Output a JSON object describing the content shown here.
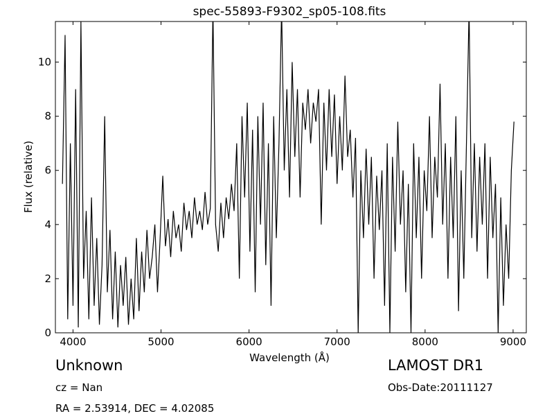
{
  "chart_data": {
    "type": "line",
    "title": "spec-55893-F9302_sp05-108.fits",
    "x_label": "Wavelength (Å)",
    "y_label": "Flux (relative)",
    "annotations": [
      "Unknown",
      "cz = Nan",
      "RA = 2.53914, DEC = 4.02085",
      "LAMOST DR1",
      "Obs-Date:20111127"
    ],
    "color": "#000000",
    "x": [
      3880,
      3910,
      3940,
      3970,
      4000,
      4030,
      4060,
      4090,
      4120,
      4150,
      4180,
      4210,
      4240,
      4270,
      4300,
      4330,
      4360,
      4390,
      4420,
      4450,
      4480,
      4510,
      4540,
      4570,
      4600,
      4630,
      4660,
      4690,
      4720,
      4750,
      4780,
      4810,
      4840,
      4870,
      4900,
      4930,
      4960,
      4990,
      5020,
      5050,
      5080,
      5110,
      5140,
      5170,
      5200,
      5230,
      5260,
      5290,
      5320,
      5350,
      5380,
      5410,
      5440,
      5470,
      5500,
      5530,
      5560,
      5590,
      5620,
      5650,
      5680,
      5710,
      5740,
      5770,
      5800,
      5830,
      5860,
      5890,
      5920,
      5950,
      5980,
      6010,
      6040,
      6070,
      6100,
      6130,
      6160,
      6190,
      6220,
      6250,
      6280,
      6310,
      6340,
      6370,
      6400,
      6430,
      6460,
      6490,
      6520,
      6550,
      6580,
      6610,
      6640,
      6670,
      6700,
      6730,
      6760,
      6790,
      6820,
      6850,
      6880,
      6910,
      6940,
      6970,
      7000,
      7030,
      7060,
      7090,
      7120,
      7150,
      7180,
      7210,
      7240,
      7270,
      7300,
      7330,
      7360,
      7390,
      7420,
      7450,
      7480,
      7510,
      7540,
      7570,
      7600,
      7630,
      7660,
      7690,
      7720,
      7750,
      7780,
      7810,
      7840,
      7870,
      7900,
      7930,
      7960,
      7990,
      8020,
      8050,
      8080,
      8110,
      8140,
      8170,
      8200,
      8230,
      8260,
      8290,
      8320,
      8350,
      8380,
      8410,
      8440,
      8470,
      8500,
      8530,
      8560,
      8590,
      8620,
      8650,
      8680,
      8710,
      8740,
      8770,
      8800,
      8830,
      8860,
      8890,
      8920,
      8950,
      8980,
      9010
    ],
    "values": [
      5.5,
      11,
      0.5,
      7,
      1,
      9,
      0.2,
      11.5,
      2,
      4.5,
      0.5,
      5,
      1,
      3.5,
      0.3,
      2.5,
      8,
      1.5,
      3.8,
      0.5,
      3,
      0.2,
      2.5,
      1,
      2.8,
      0.3,
      2,
      0.5,
      3.5,
      0.8,
      3,
      1.5,
      3.8,
      2,
      2.8,
      4,
      1.5,
      3.5,
      5.8,
      3.2,
      4.2,
      2.8,
      4.5,
      3.5,
      4,
      3,
      4.8,
      3.8,
      4.5,
      3.5,
      5,
      4,
      4.5,
      3.8,
      5.2,
      4,
      4.6,
      12,
      4,
      3,
      4.8,
      3.5,
      5,
      4.2,
      5.5,
      4.5,
      7,
      2,
      8,
      5,
      8.5,
      3,
      7.5,
      1.5,
      8,
      4,
      8.5,
      2.5,
      7,
      1,
      8,
      3.5,
      7,
      12,
      6,
      9,
      5,
      10,
      6.5,
      9,
      5,
      8.5,
      7.5,
      9,
      7,
      8.5,
      7.8,
      9,
      4,
      8.5,
      6,
      9,
      6.5,
      8.8,
      5.5,
      8,
      6,
      9.5,
      6.5,
      7.5,
      5,
      7.2,
      0,
      6,
      3.5,
      6.8,
      4,
      6.5,
      2,
      5.8,
      3.8,
      6,
      1,
      7,
      0,
      6.5,
      3,
      7.8,
      4,
      6,
      1.5,
      5.5,
      0,
      7,
      3.5,
      6.5,
      2,
      6,
      4.5,
      8,
      3.5,
      6.5,
      5,
      9.2,
      4,
      7,
      2,
      6.5,
      3.5,
      8,
      0.8,
      6,
      2,
      7,
      12,
      3.5,
      7,
      3,
      6.5,
      4,
      7,
      2,
      6.5,
      3.5,
      5.5,
      0,
      5,
      1,
      4,
      2,
      6,
      7.8
    ],
    "xlim": [
      3800,
      9150
    ],
    "ylim": [
      0,
      11.5
    ],
    "xticks": [
      4000,
      5000,
      6000,
      7000,
      8000,
      9000
    ],
    "yticks": [
      0,
      2,
      4,
      6,
      8,
      10
    ]
  }
}
